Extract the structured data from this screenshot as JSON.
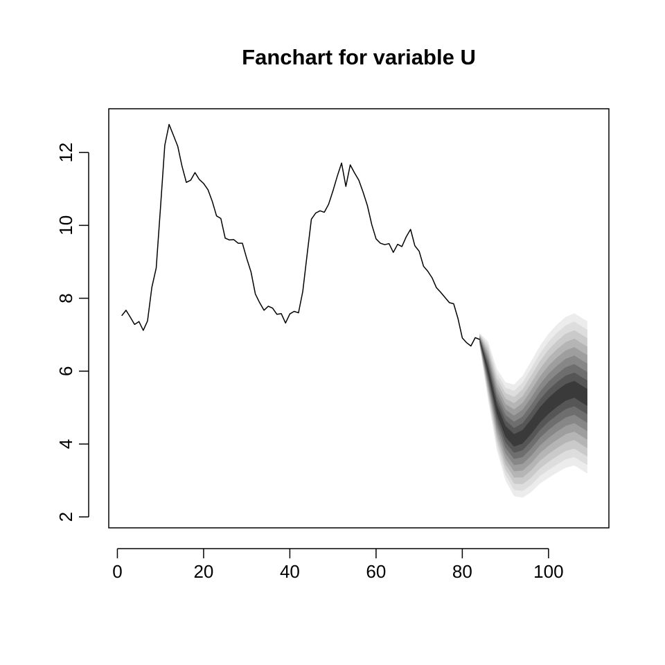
{
  "chart_data": {
    "type": "area",
    "title": "Fanchart for variable U",
    "xlabel": "",
    "ylabel": "",
    "xlim": [
      -2,
      114
    ],
    "ylim": [
      1.7,
      13.2
    ],
    "x_ticks": [
      0,
      20,
      40,
      60,
      80,
      100
    ],
    "y_ticks": [
      2,
      4,
      6,
      8,
      10,
      12
    ],
    "grid": false,
    "legend": "none",
    "series": [
      {
        "x": [
          1,
          2,
          3,
          4,
          5,
          6,
          7,
          8,
          9,
          10,
          11,
          12,
          13,
          14,
          15,
          16,
          17,
          18,
          19,
          20,
          21,
          22,
          23,
          24,
          25,
          26,
          27,
          28,
          29,
          30,
          31,
          32,
          33,
          34,
          35,
          36,
          37,
          38,
          39,
          40,
          41,
          42,
          43,
          44,
          45,
          46,
          47,
          48,
          49,
          50,
          51,
          52,
          53,
          54,
          55,
          56,
          57,
          58,
          59,
          60,
          61,
          62,
          63,
          64,
          65,
          66,
          67,
          68,
          69,
          70,
          71,
          72,
          73,
          74,
          75,
          76,
          77,
          78,
          79,
          80,
          81,
          82,
          83,
          84
        ],
        "values": [
          7.52,
          7.67,
          7.48,
          7.28,
          7.36,
          7.12,
          7.38,
          8.3,
          8.83,
          10.49,
          12.2,
          12.77,
          12.47,
          12.17,
          11.62,
          11.18,
          11.24,
          11.45,
          11.26,
          11.15,
          10.98,
          10.66,
          10.26,
          10.19,
          9.65,
          9.6,
          9.61,
          9.51,
          9.51,
          9.09,
          8.72,
          8.12,
          7.88,
          7.67,
          7.78,
          7.73,
          7.56,
          7.58,
          7.32,
          7.57,
          7.64,
          7.6,
          8.19,
          9.19,
          10.17,
          10.34,
          10.4,
          10.36,
          10.58,
          10.95,
          11.35,
          11.71,
          11.07,
          11.66,
          11.44,
          11.24,
          10.91,
          10.54,
          10.02,
          9.63,
          9.51,
          9.47,
          9.5,
          9.26,
          9.48,
          9.42,
          9.69,
          9.89,
          9.44,
          9.29,
          8.88,
          8.74,
          8.56,
          8.29,
          8.16,
          8.02,
          7.88,
          7.85,
          7.44,
          6.91,
          6.78,
          6.69,
          6.92,
          6.87
        ]
      }
    ],
    "fan": {
      "x": [
        84,
        86,
        88,
        90,
        92,
        94,
        96,
        98,
        100,
        102,
        104,
        106,
        108,
        109
      ],
      "center": [
        6.87,
        6.0,
        4.95,
        4.35,
        4.1,
        4.2,
        4.48,
        4.8,
        5.05,
        5.25,
        5.42,
        5.5,
        5.35,
        5.28
      ],
      "half_widths": [
        0.1,
        0.45,
        0.62,
        0.75,
        0.85,
        0.93,
        1.0,
        1.05,
        1.1,
        1.13,
        1.15,
        1.16,
        1.16,
        1.16
      ],
      "levels": [
        0.2,
        0.4,
        0.6,
        0.8,
        1.0,
        1.2,
        1.4,
        1.6,
        1.8
      ],
      "colors": [
        "#3a3a3a",
        "#565656",
        "#6e6e6e",
        "#878787",
        "#9e9e9e",
        "#b5b5b5",
        "#cacaca",
        "#dddddd",
        "#ececec"
      ]
    }
  }
}
